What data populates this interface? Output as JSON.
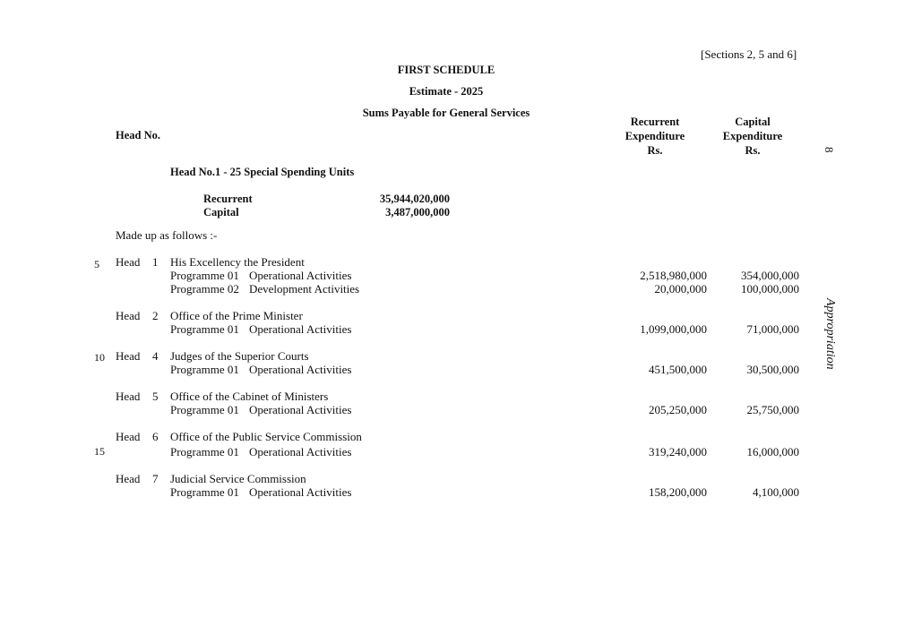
{
  "sections_ref": "[Sections 2, 5 and 6]",
  "title": "FIRST SCHEDULE",
  "estimate": "Estimate - 2025",
  "subtitle": "Sums Payable for General Services",
  "col_head_no": "Head No.",
  "col_recurrent": [
    "Recurrent",
    "Expenditure",
    "Rs."
  ],
  "col_capital": [
    "Capital",
    "Expenditure",
    "Rs."
  ],
  "page_number": "8",
  "side_title": "Appropriation",
  "group_title": "Head No.1 - 25  Special Spending Units",
  "totals": {
    "recurrent_label": "Recurrent",
    "recurrent_value": "35,944,020,000",
    "capital_label": "Capital",
    "capital_value": "3,487,000,000"
  },
  "made_up": "Made up as follows :-",
  "line_numbers": [
    "5",
    "10",
    "15"
  ],
  "heads": [
    {
      "label": "Head",
      "num": "1",
      "name": "His Excellency the President",
      "programmes": [
        {
          "prog": "Programme 01",
          "desc": "Operational Activities",
          "recurrent": "2,518,980,000",
          "capital": "354,000,000"
        },
        {
          "prog": "Programme 02",
          "desc": "Development Activities",
          "recurrent": "20,000,000",
          "capital": "100,000,000"
        }
      ]
    },
    {
      "label": "Head",
      "num": "2",
      "name": "Office of the Prime Minister",
      "programmes": [
        {
          "prog": "Programme 01",
          "desc": "Operational Activities",
          "recurrent": "1,099,000,000",
          "capital": "71,000,000"
        }
      ]
    },
    {
      "label": "Head",
      "num": "4",
      "name": "Judges of the Superior Courts",
      "programmes": [
        {
          "prog": "Programme 01",
          "desc": "Operational Activities",
          "recurrent": "451,500,000",
          "capital": "30,500,000"
        }
      ]
    },
    {
      "label": "Head",
      "num": "5",
      "name": "Office of the Cabinet of Ministers",
      "programmes": [
        {
          "prog": "Programme 01",
          "desc": "Operational Activities",
          "recurrent": "205,250,000",
          "capital": "25,750,000"
        }
      ]
    },
    {
      "label": "Head",
      "num": "6",
      "name": "Office of the Public Service Commission",
      "programmes": [
        {
          "prog": "Programme 01",
          "desc": "Operational Activities",
          "recurrent": "319,240,000",
          "capital": "16,000,000"
        }
      ]
    },
    {
      "label": "Head",
      "num": "7",
      "name": "Judicial Service Commission",
      "programmes": [
        {
          "prog": "Programme 01",
          "desc": "Operational Activities",
          "recurrent": "158,200,000",
          "capital": "4,100,000"
        }
      ]
    }
  ]
}
